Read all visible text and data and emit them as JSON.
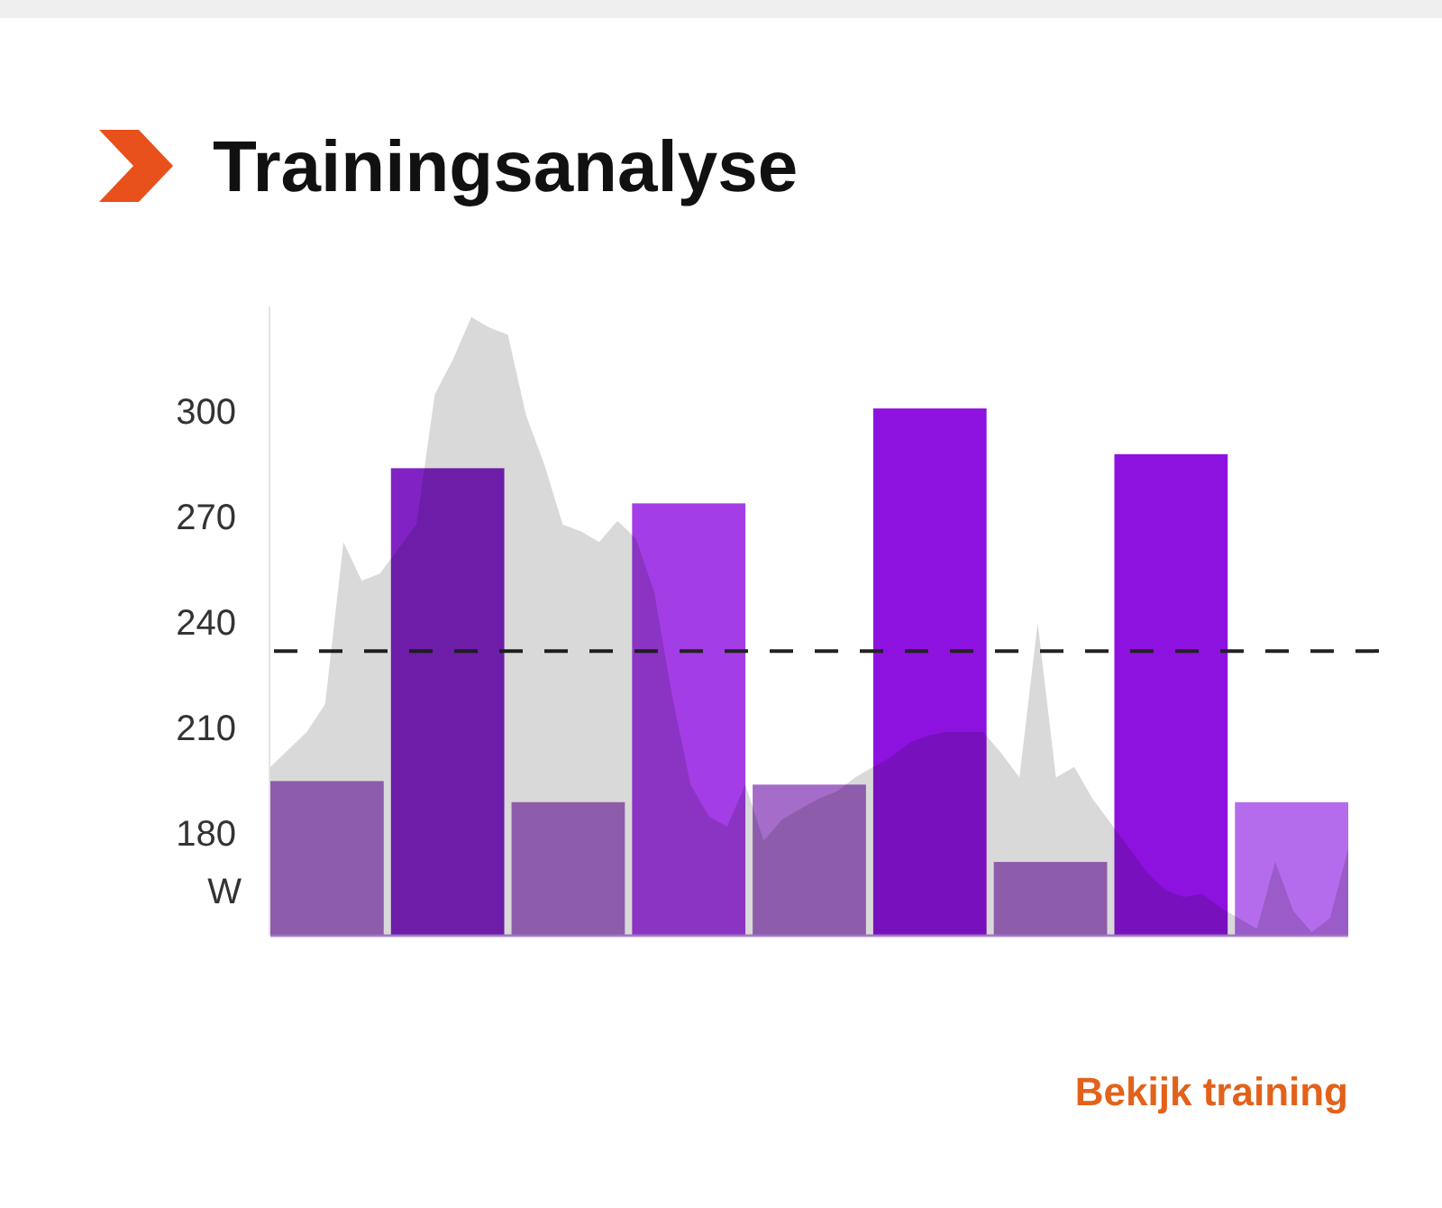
{
  "chart_data": [
    {
      "type": "bar",
      "title": "Trainingsanalyse",
      "ylabel": "W",
      "categories": [
        null,
        null,
        null,
        null,
        null,
        null,
        null,
        null,
        null
      ],
      "ylim": [
        151,
        330
      ],
      "yticks": [
        180,
        210,
        240,
        270,
        300
      ],
      "colors": [
        "#a66cc9",
        "#8022c4",
        "#a66cc9",
        "#a33de6",
        "#a66cc9",
        "#8e12df",
        "#a66cc9",
        "#8e12df",
        "#b56cec"
      ],
      "values": [
        195,
        284,
        189,
        274,
        194,
        301,
        172,
        288,
        189
      ],
      "ref_lines": [
        {
          "axis": "y",
          "value": 232,
          "color": "#222222",
          "line_style": "dashed"
        }
      ],
      "annotations": [
        "Bekijk training"
      ]
    },
    {
      "type": "area",
      "color": "#d9d9d9",
      "tick_labels": false,
      "categories": [
        null,
        null,
        null,
        null,
        null,
        null,
        null,
        null,
        null,
        null,
        null,
        null,
        null,
        null,
        null,
        null,
        null,
        null,
        null,
        null,
        null,
        null,
        null,
        null,
        null,
        null,
        null,
        null,
        null,
        null,
        null,
        null,
        null,
        null,
        null,
        null,
        null,
        null,
        null,
        null,
        null,
        null,
        null,
        null,
        null,
        null,
        null,
        null,
        null,
        null,
        null,
        null,
        null,
        null,
        null,
        null,
        null,
        null,
        null,
        null
      ],
      "ylim": [
        151,
        330
      ],
      "values": [
        199,
        204,
        209,
        217,
        263,
        252,
        254,
        261,
        268,
        305,
        315,
        327,
        324,
        322,
        299,
        285,
        268,
        266,
        263,
        269,
        264,
        249,
        219,
        194,
        185,
        182,
        194,
        178,
        184,
        187,
        190,
        192,
        196,
        199,
        202,
        206,
        208,
        209,
        209,
        209,
        203,
        196,
        240,
        196,
        199,
        190,
        183,
        176,
        169,
        164,
        162,
        163,
        159,
        156,
        153,
        172,
        158,
        152,
        156,
        176
      ]
    }
  ]
}
